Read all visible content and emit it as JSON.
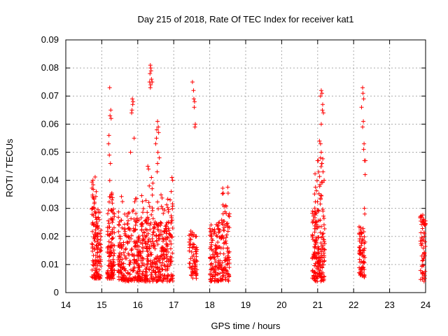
{
  "chart_data": {
    "type": "scatter",
    "title": "Day 215 of 2018, Rate Of TEC Index for receiver kat1",
    "xlabel": "GPS time / hours",
    "ylabel": "ROTI / TECUs",
    "xlim": [
      14,
      24
    ],
    "ylim": [
      0,
      0.09
    ],
    "x_ticks": [
      "14",
      "15",
      "16",
      "17",
      "18",
      "19",
      "20",
      "21",
      "22",
      "23",
      "24"
    ],
    "y_ticks": [
      "0",
      "0.01",
      "0.02",
      "0.03",
      "0.04",
      "0.05",
      "0.06",
      "0.07",
      "0.08",
      "0.09"
    ],
    "grid": true,
    "marker": "plus",
    "color": "#ff0000",
    "series": [
      {
        "name": "ROTI",
        "clusters": [
          {
            "x": [
              14.72,
              14.98
            ],
            "y": [
              0.005,
              0.03
            ],
            "n": 130
          },
          {
            "x": [
              14.72,
              14.85
            ],
            "y": [
              0.03,
              0.042
            ],
            "n": 18
          },
          {
            "x": [
              15.15,
              15.35
            ],
            "y": [
              0.005,
              0.03
            ],
            "n": 120
          },
          {
            "x": [
              15.2,
              15.3
            ],
            "y": [
              0.03,
              0.042
            ],
            "n": 10
          },
          {
            "x": [
              15.45,
              16.98
            ],
            "y": [
              0.004,
              0.025
            ],
            "n": 520
          },
          {
            "x": [
              15.45,
              16.98
            ],
            "y": [
              0.025,
              0.035
            ],
            "n": 70
          },
          {
            "x": [
              17.42,
              17.65
            ],
            "y": [
              0.005,
              0.022
            ],
            "n": 70
          },
          {
            "x": [
              18.0,
              18.55
            ],
            "y": [
              0.004,
              0.025
            ],
            "n": 190
          },
          {
            "x": [
              18.3,
              18.55
            ],
            "y": [
              0.025,
              0.038
            ],
            "n": 18
          },
          {
            "x": [
              20.85,
              21.2
            ],
            "y": [
              0.004,
              0.03
            ],
            "n": 170
          },
          {
            "x": [
              20.9,
              21.15
            ],
            "y": [
              0.03,
              0.048
            ],
            "n": 25
          },
          {
            "x": [
              22.15,
              22.32
            ],
            "y": [
              0.005,
              0.024
            ],
            "n": 70
          },
          {
            "x": [
              23.85,
              24.0
            ],
            "y": [
              0.004,
              0.028
            ],
            "n": 60
          }
        ],
        "points": [
          [
            15.22,
            0.073
          ],
          [
            15.25,
            0.065
          ],
          [
            15.23,
            0.063
          ],
          [
            15.26,
            0.062
          ],
          [
            15.2,
            0.056
          ],
          [
            15.21,
            0.049
          ],
          [
            15.19,
            0.053
          ],
          [
            15.24,
            0.046
          ],
          [
            15.85,
            0.069
          ],
          [
            15.87,
            0.068
          ],
          [
            15.86,
            0.067
          ],
          [
            15.84,
            0.065
          ],
          [
            15.83,
            0.064
          ],
          [
            15.9,
            0.055
          ],
          [
            15.8,
            0.05
          ],
          [
            16.35,
            0.081
          ],
          [
            16.36,
            0.08
          ],
          [
            16.37,
            0.079
          ],
          [
            16.34,
            0.078
          ],
          [
            16.38,
            0.076
          ],
          [
            16.33,
            0.075
          ],
          [
            16.36,
            0.074
          ],
          [
            16.4,
            0.075
          ],
          [
            16.35,
            0.073
          ],
          [
            16.55,
            0.061
          ],
          [
            16.57,
            0.059
          ],
          [
            16.53,
            0.058
          ],
          [
            16.58,
            0.057
          ],
          [
            16.52,
            0.055
          ],
          [
            16.5,
            0.053
          ],
          [
            16.56,
            0.05
          ],
          [
            16.6,
            0.048
          ],
          [
            16.55,
            0.046
          ],
          [
            16.54,
            0.043
          ],
          [
            16.28,
            0.045
          ],
          [
            16.3,
            0.044
          ],
          [
            16.38,
            0.041
          ],
          [
            16.42,
            0.039
          ],
          [
            16.4,
            0.037
          ],
          [
            16.32,
            0.038
          ],
          [
            16.95,
            0.041
          ],
          [
            16.97,
            0.04
          ],
          [
            16.93,
            0.036
          ],
          [
            16.9,
            0.033
          ],
          [
            17.52,
            0.075
          ],
          [
            17.55,
            0.072
          ],
          [
            17.56,
            0.069
          ],
          [
            17.58,
            0.068
          ],
          [
            17.57,
            0.066
          ],
          [
            17.6,
            0.06
          ],
          [
            17.59,
            0.059
          ],
          [
            21.1,
            0.072
          ],
          [
            21.12,
            0.071
          ],
          [
            21.08,
            0.07
          ],
          [
            21.14,
            0.067
          ],
          [
            21.13,
            0.065
          ],
          [
            21.16,
            0.064
          ],
          [
            21.1,
            0.06
          ],
          [
            21.05,
            0.054
          ],
          [
            21.08,
            0.053
          ],
          [
            21.1,
            0.05
          ],
          [
            21.12,
            0.046
          ],
          [
            21.15,
            0.043
          ],
          [
            21.02,
            0.047
          ],
          [
            21.18,
            0.04
          ],
          [
            22.25,
            0.073
          ],
          [
            22.26,
            0.071
          ],
          [
            22.28,
            0.069
          ],
          [
            22.22,
            0.066
          ],
          [
            22.27,
            0.061
          ],
          [
            22.25,
            0.059
          ],
          [
            22.29,
            0.053
          ],
          [
            22.28,
            0.051
          ],
          [
            22.3,
            0.047
          ],
          [
            22.33,
            0.047
          ],
          [
            22.32,
            0.042
          ],
          [
            22.3,
            0.03
          ],
          [
            22.31,
            0.028
          ]
        ]
      }
    ]
  }
}
